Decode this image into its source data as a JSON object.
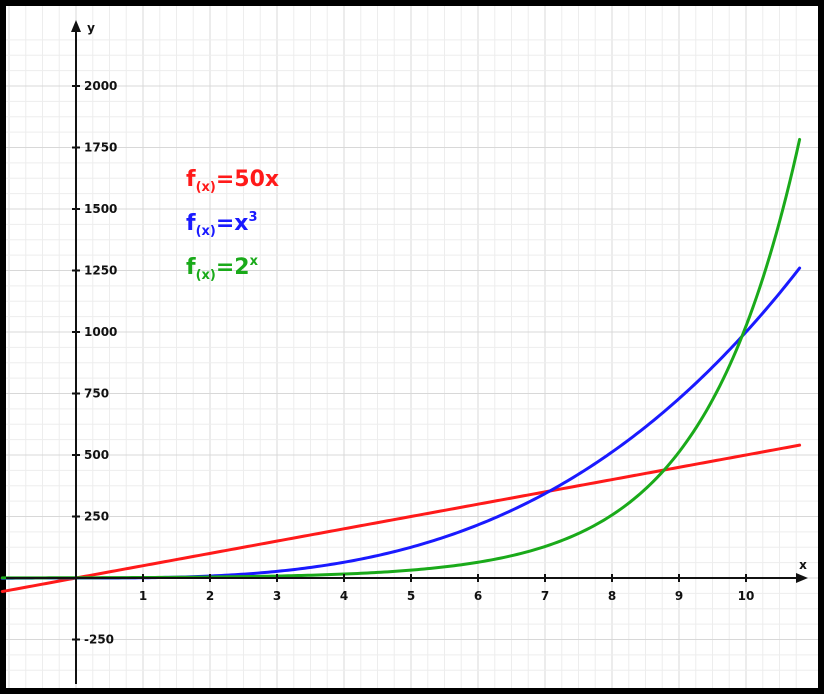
{
  "chart_data": {
    "type": "line",
    "title": "",
    "xlabel": "x",
    "ylabel": "y",
    "xlim": [
      -1.1,
      10.85
    ],
    "ylim": [
      -375,
      2200
    ],
    "grid": true,
    "x_ticks": [
      1,
      2,
      3,
      4,
      5,
      6,
      7,
      8,
      9,
      10
    ],
    "y_ticks": [
      2000,
      1750,
      1500,
      1250,
      1000,
      750,
      500,
      250,
      -250
    ],
    "legend_placement": "top-left",
    "series": [
      {
        "name": "f(x)=50x",
        "legend": {
          "prefix": "f",
          "sub": "(x)",
          "body": "=50x",
          "sup": ""
        },
        "color": "#ff1a1a",
        "formula": "50x",
        "x": [
          -1.1,
          0,
          1,
          2,
          3,
          4,
          5,
          6,
          7,
          8,
          9,
          10,
          10.8
        ],
        "y": [
          -55,
          0,
          50,
          100,
          150,
          200,
          250,
          300,
          350,
          400,
          450,
          500,
          540
        ]
      },
      {
        "name": "f(x)=x³",
        "legend": {
          "prefix": "f",
          "sub": "(x)",
          "body": "=x",
          "sup": "3"
        },
        "color": "#1a1aff",
        "formula": "x^3",
        "x": [
          -1.1,
          0,
          1,
          2,
          3,
          4,
          5,
          6,
          7,
          8,
          9,
          10,
          10.8
        ],
        "y": [
          -1.3,
          0,
          1,
          8,
          27,
          64,
          125,
          216,
          343,
          512,
          729,
          1000,
          1259.7
        ]
      },
      {
        "name": "f(x)=2ˣ",
        "legend": {
          "prefix": "f",
          "sub": "(x)",
          "body": "=2",
          "sup": "x"
        },
        "color": "#1aaa1a",
        "formula": "2^x",
        "x": [
          -1.1,
          0,
          1,
          2,
          3,
          4,
          5,
          6,
          7,
          8,
          9,
          10,
          10.8
        ],
        "y": [
          0.47,
          1,
          2,
          4,
          8,
          16,
          32,
          64,
          128,
          256,
          512,
          1024,
          1782.9
        ]
      }
    ]
  }
}
